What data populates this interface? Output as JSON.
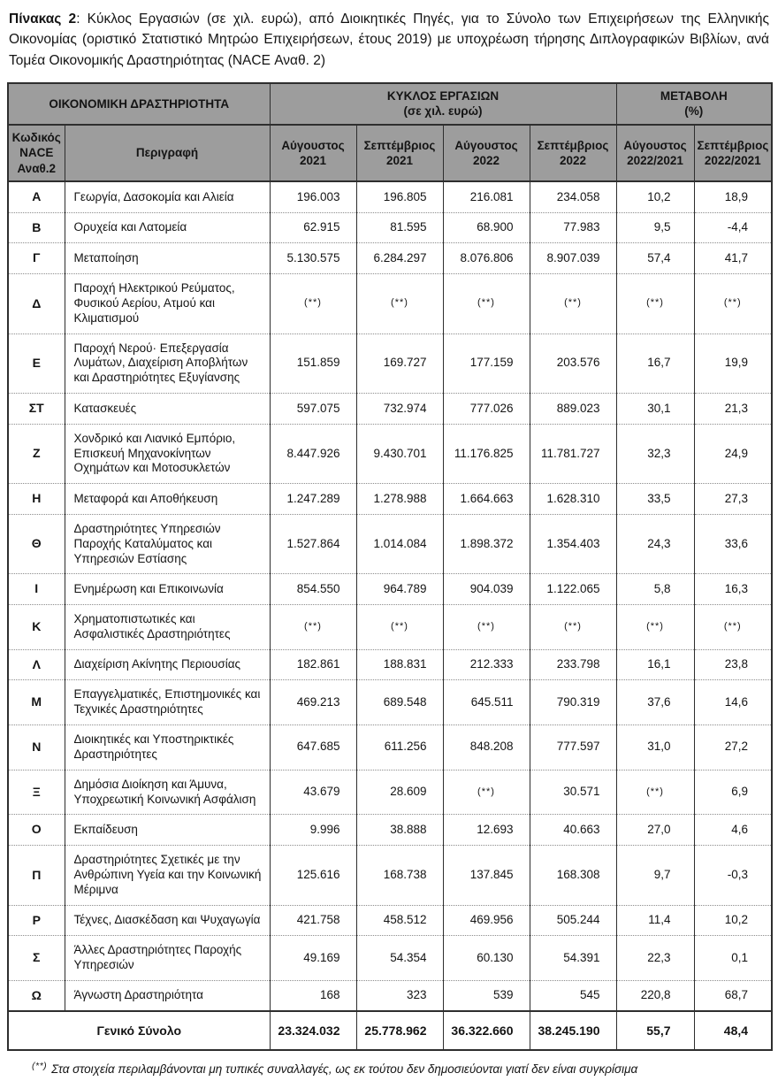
{
  "title": {
    "label": "Πίνακας 2",
    "text": ": Κύκλος Εργασιών (σε χιλ. ευρώ), από Διοικητικές Πηγές, για το Σύνολο των Επιχειρήσεων της Ελληνικής Οικονομίας (οριστικό Στατιστικό Μητρώο Επιχειρήσεων, έτους 2019) με υποχρέωση τήρησης Διπλογραφικών Βιβλίων, ανά Τομέα Οικονομικής Δραστηριότητας (NACE Αναθ. 2)"
  },
  "table": {
    "group_headers": [
      {
        "label": "ΟΙΚΟΝΟΜΙΚΗ ΔΡΑΣΤΗΡΙΟΤΗΤΑ",
        "colspan": 2
      },
      {
        "label": "ΚΥΚΛΟΣ ΕΡΓΑΣΙΩΝ\n(σε χιλ. ευρώ)",
        "colspan": 4
      },
      {
        "label": "ΜΕΤΑΒΟΛΗ\n(%)",
        "colspan": 2
      }
    ],
    "column_headers": [
      "Κωδικός\nNACE\nΑναθ.2",
      "Περιγραφή",
      "Αύγουστος\n2021",
      "Σεπτέμβριος\n2021",
      "Αύγουστος\n2022",
      "Σεπτέμβριος\n2022",
      "Αύγουστος\n2022/2021",
      "Σεπτέμβριος\n2022/2021"
    ],
    "rows": [
      {
        "code": "Α",
        "description": "Γεωργία, Δασοκομία και Αλιεία",
        "values": [
          "196.003",
          "196.805",
          "216.081",
          "234.058",
          "10,2",
          "18,9"
        ]
      },
      {
        "code": "Β",
        "description": "Ορυχεία και Λατομεία",
        "values": [
          "62.915",
          "81.595",
          "68.900",
          "77.983",
          "9,5",
          "-4,4"
        ]
      },
      {
        "code": "Γ",
        "description": "Μεταποίηση",
        "values": [
          "5.130.575",
          "6.284.297",
          "8.076.806",
          "8.907.039",
          "57,4",
          "41,7"
        ]
      },
      {
        "code": "Δ",
        "description": "Παροχή Ηλεκτρικού Ρεύματος, Φυσικού Αερίου, Ατμού και Κλιματισμού",
        "values": [
          "(**)",
          "(**)",
          "(**)",
          "(**)",
          "(**)",
          "(**)"
        ]
      },
      {
        "code": "Ε",
        "description": "Παροχή Νερού· Επεξεργασία Λυμάτων, Διαχείριση Αποβλήτων και Δραστηριότητες Εξυγίανσης",
        "values": [
          "151.859",
          "169.727",
          "177.159",
          "203.576",
          "16,7",
          "19,9"
        ]
      },
      {
        "code": "ΣΤ",
        "description": "Κατασκευές",
        "values": [
          "597.075",
          "732.974",
          "777.026",
          "889.023",
          "30,1",
          "21,3"
        ]
      },
      {
        "code": "Ζ",
        "description": "Χονδρικό και Λιανικό Εμπόριο, Επισκευή Μηχανοκίνητων Οχημάτων και Μοτοσυκλετών",
        "values": [
          "8.447.926",
          "9.430.701",
          "11.176.825",
          "11.781.727",
          "32,3",
          "24,9"
        ]
      },
      {
        "code": "Η",
        "description": "Μεταφορά και Αποθήκευση",
        "values": [
          "1.247.289",
          "1.278.988",
          "1.664.663",
          "1.628.310",
          "33,5",
          "27,3"
        ]
      },
      {
        "code": "Θ",
        "description": "Δραστηριότητες Υπηρεσιών Παροχής Καταλύματος και Υπηρεσιών Εστίασης",
        "values": [
          "1.527.864",
          "1.014.084",
          "1.898.372",
          "1.354.403",
          "24,3",
          "33,6"
        ]
      },
      {
        "code": "Ι",
        "description": "Ενημέρωση και Επικοινωνία",
        "values": [
          "854.550",
          "964.789",
          "904.039",
          "1.122.065",
          "5,8",
          "16,3"
        ]
      },
      {
        "code": "Κ",
        "description": "Χρηματοπιστωτικές και Ασφαλιστικές Δραστηριότητες",
        "values": [
          "(**)",
          "(**)",
          "(**)",
          "(**)",
          "(**)",
          "(**)"
        ]
      },
      {
        "code": "Λ",
        "description": "Διαχείριση Ακίνητης Περιουσίας",
        "values": [
          "182.861",
          "188.831",
          "212.333",
          "233.798",
          "16,1",
          "23,8"
        ]
      },
      {
        "code": "Μ",
        "description": "Επαγγελματικές, Επιστημονικές και Τεχνικές Δραστηριότητες",
        "values": [
          "469.213",
          "689.548",
          "645.511",
          "790.319",
          "37,6",
          "14,6"
        ]
      },
      {
        "code": "Ν",
        "description": "Διοικητικές και Υποστηρικτικές Δραστηριότητες",
        "values": [
          "647.685",
          "611.256",
          "848.208",
          "777.597",
          "31,0",
          "27,2"
        ]
      },
      {
        "code": "Ξ",
        "description": "Δημόσια Διοίκηση και Άμυνα, Υποχρεωτική Κοινωνική Ασφάλιση",
        "values": [
          "43.679",
          "28.609",
          "(**)",
          "30.571",
          "(**)",
          "6,9"
        ]
      },
      {
        "code": "Ο",
        "description": "Εκπαίδευση",
        "values": [
          "9.996",
          "38.888",
          "12.693",
          "40.663",
          "27,0",
          "4,6"
        ]
      },
      {
        "code": "Π",
        "description": "Δραστηριότητες Σχετικές με την Ανθρώπινη Υγεία και την Κοινωνική Μέριμνα",
        "values": [
          "125.616",
          "168.738",
          "137.845",
          "168.308",
          "9,7",
          "-0,3"
        ]
      },
      {
        "code": "Ρ",
        "description": "Τέχνες, Διασκέδαση και Ψυχαγωγία",
        "values": [
          "421.758",
          "458.512",
          "469.956",
          "505.244",
          "11,4",
          "10,2"
        ]
      },
      {
        "code": "Σ",
        "description": "Άλλες Δραστηριότητες Παροχής Υπηρεσιών",
        "values": [
          "49.169",
          "54.354",
          "60.130",
          "54.391",
          "22,3",
          "0,1"
        ]
      },
      {
        "code": "Ω",
        "description": "Άγνωστη Δραστηριότητα",
        "values": [
          "168",
          "323",
          "539",
          "545",
          "220,8",
          "68,7"
        ]
      }
    ],
    "total_row": {
      "label": "Γενικό Σύνολο",
      "values": [
        "23.324.032",
        "25.778.962",
        "36.322.660",
        "38.245.190",
        "55,7",
        "48,4"
      ]
    }
  },
  "footnote": {
    "marker": "(**)",
    "text": "Στα στοιχεία περιλαμβάνονται μη τυπικές συναλλαγές, ως εκ τούτου δεν δημοσιεύονται γιατί δεν είναι συγκρίσιμα"
  },
  "colors": {
    "header_bg": "#9d9d9d",
    "border": "#2e2e2e",
    "row_divider": "#8c8c8c",
    "text": "#141414"
  }
}
